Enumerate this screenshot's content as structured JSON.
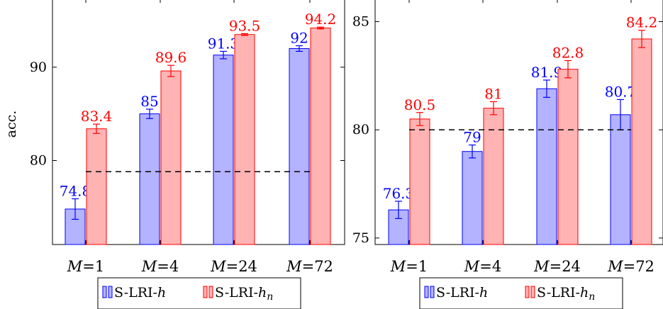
{
  "chart_data": [
    {
      "type": "bar",
      "ylabel": "acc.",
      "categories": [
        "M=1",
        "M=4",
        "M=24",
        "M=72"
      ],
      "series": [
        {
          "name": "S-LRI-h",
          "values": [
            74.8,
            85,
            91.3,
            92
          ],
          "errors": [
            1.1,
            0.5,
            0.4,
            0.3
          ],
          "labels": [
            "74.8",
            "85",
            "91.3",
            "92"
          ],
          "color": "#0000ff",
          "fill": "#b3b3ff"
        },
        {
          "name": "S-LRI-h_n",
          "values": [
            83.4,
            89.6,
            93.5,
            94.2
          ],
          "errors": [
            0.5,
            0.6,
            0.1,
            0.1
          ],
          "labels": [
            "83.4",
            "89.6",
            "93.5",
            "94.2"
          ],
          "color": "#ff0000",
          "fill": "#ffb3b3"
        }
      ],
      "ylim": [
        71,
        97.2
      ],
      "yticks": [
        80,
        90
      ],
      "baseline": 78.8,
      "legend": {
        "placement": "below",
        "entries": [
          "S-LRI-h",
          "S-LRI-h_n"
        ]
      }
    },
    {
      "type": "bar",
      "ylabel": "",
      "categories": [
        "M=1",
        "M=4",
        "M=24",
        "M=72"
      ],
      "series": [
        {
          "name": "S-LRI-h",
          "values": [
            76.3,
            79,
            81.9,
            80.7
          ],
          "errors": [
            0.4,
            0.3,
            0.4,
            0.7
          ],
          "labels": [
            "76.3",
            "79",
            "81.9",
            "80.7"
          ],
          "color": "#0000ff",
          "fill": "#b3b3ff"
        },
        {
          "name": "S-LRI-h_n",
          "values": [
            80.5,
            81,
            82.8,
            84.2
          ],
          "errors": [
            0.3,
            0.3,
            0.4,
            0.4
          ],
          "labels": [
            "80.5",
            "81",
            "82.8",
            "84.2"
          ],
          "color": "#ff0000",
          "fill": "#ffb3b3"
        }
      ],
      "ylim": [
        74.7,
        86
      ],
      "yticks": [
        75,
        80,
        85
      ],
      "baseline": 80,
      "legend": {
        "placement": "below",
        "entries": [
          "S-LRI-h",
          "S-LRI-h_n"
        ]
      }
    }
  ]
}
